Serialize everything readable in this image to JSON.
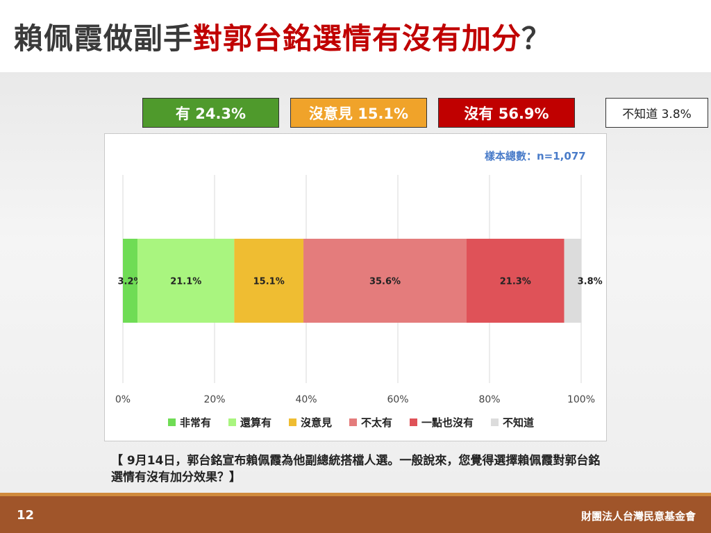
{
  "title": {
    "part1": "賴佩霞做副手",
    "part2": "對郭台銘選情有沒有加分",
    "part3": "？"
  },
  "colors": {
    "title_dark": "#3a3a3a",
    "title_red": "#c00000",
    "yes_box": "#4f9a2c",
    "neutral_box": "#f0a32a",
    "no_box": "#c00000",
    "footer": "#a0552a"
  },
  "summary": {
    "yes": "有 24.3%",
    "neutral": "沒意見 15.1%",
    "no": "沒有 56.9%",
    "unknown": "不知道 3.8%"
  },
  "sample_size": "樣本總數：n=1,077",
  "chart_data": {
    "type": "bar",
    "orientation": "horizontal",
    "stacked": true,
    "xlim": [
      0,
      100
    ],
    "x_ticks": [
      "0%",
      "20%",
      "40%",
      "60%",
      "80%",
      "100%"
    ],
    "grid": true,
    "legend_position": "bottom",
    "series": [
      {
        "name": "非常有",
        "value": 3.2,
        "label": "3.2%",
        "color": "#6fdc55"
      },
      {
        "name": "還算有",
        "value": 21.1,
        "label": "21.1%",
        "color": "#a9f57f"
      },
      {
        "name": "沒意見",
        "value": 15.1,
        "label": "15.1%",
        "color": "#efbd32"
      },
      {
        "name": "不太有",
        "value": 35.6,
        "label": "35.6%",
        "color": "#e47c7c"
      },
      {
        "name": "一點也沒有",
        "value": 21.3,
        "label": "21.3%",
        "color": "#df5258"
      },
      {
        "name": "不知道",
        "value": 3.8,
        "label": "3.8%",
        "color": "#dcdcdc"
      }
    ]
  },
  "footnote": "【 9月14日，郭台銘宣布賴佩霞為他副總統搭檔人選。一般說來，您覺得選擇賴佩霞對郭台銘選情有沒有加分效果？】",
  "footer": {
    "page_number": "12",
    "organization": "財團法人台灣民意基金會"
  }
}
